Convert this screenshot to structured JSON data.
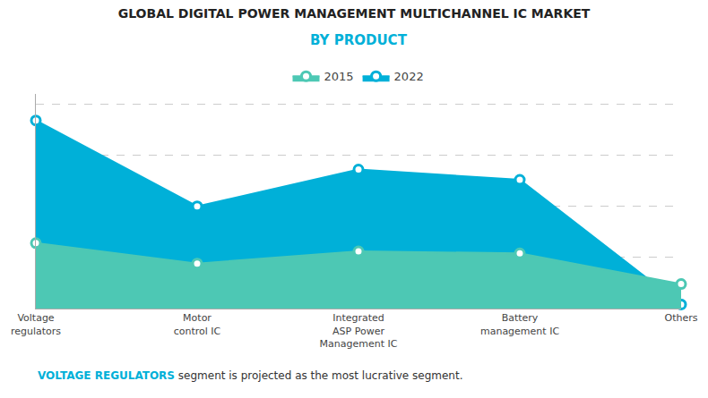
{
  "chart_data": {
    "type": "area",
    "title": "GLOBAL DIGITAL POWER MANAGEMENT MULTICHANNEL IC MARKET",
    "subtitle": "BY PRODUCT",
    "categories": [
      "Voltage\nregulators",
      "Motor\ncontrol IC",
      "Integrated\nASP Power\nManagement IC",
      "Battery\nmanagement IC",
      "Others"
    ],
    "series": [
      {
        "name": "2015",
        "color": "#4dc8b4",
        "values": [
          0.32,
          0.22,
          0.28,
          0.27,
          0.12
        ]
      },
      {
        "name": "2022",
        "color": "#00b0d8",
        "values": [
          0.92,
          0.5,
          0.68,
          0.63,
          0.02
        ]
      }
    ],
    "ylim": [
      0.0,
      1.05
    ],
    "yticks": [
      0.25,
      0.5,
      0.75,
      1.0
    ],
    "grid": true,
    "tick_labels": "x",
    "marker": "circle",
    "legend": "top",
    "annotations": [
      {
        "text": "VOLTAGE REGULATORS",
        "color": "#00b0d8"
      },
      {
        "text": " segment is projected as the most lucrative segment.",
        "color": "#333333"
      }
    ]
  }
}
